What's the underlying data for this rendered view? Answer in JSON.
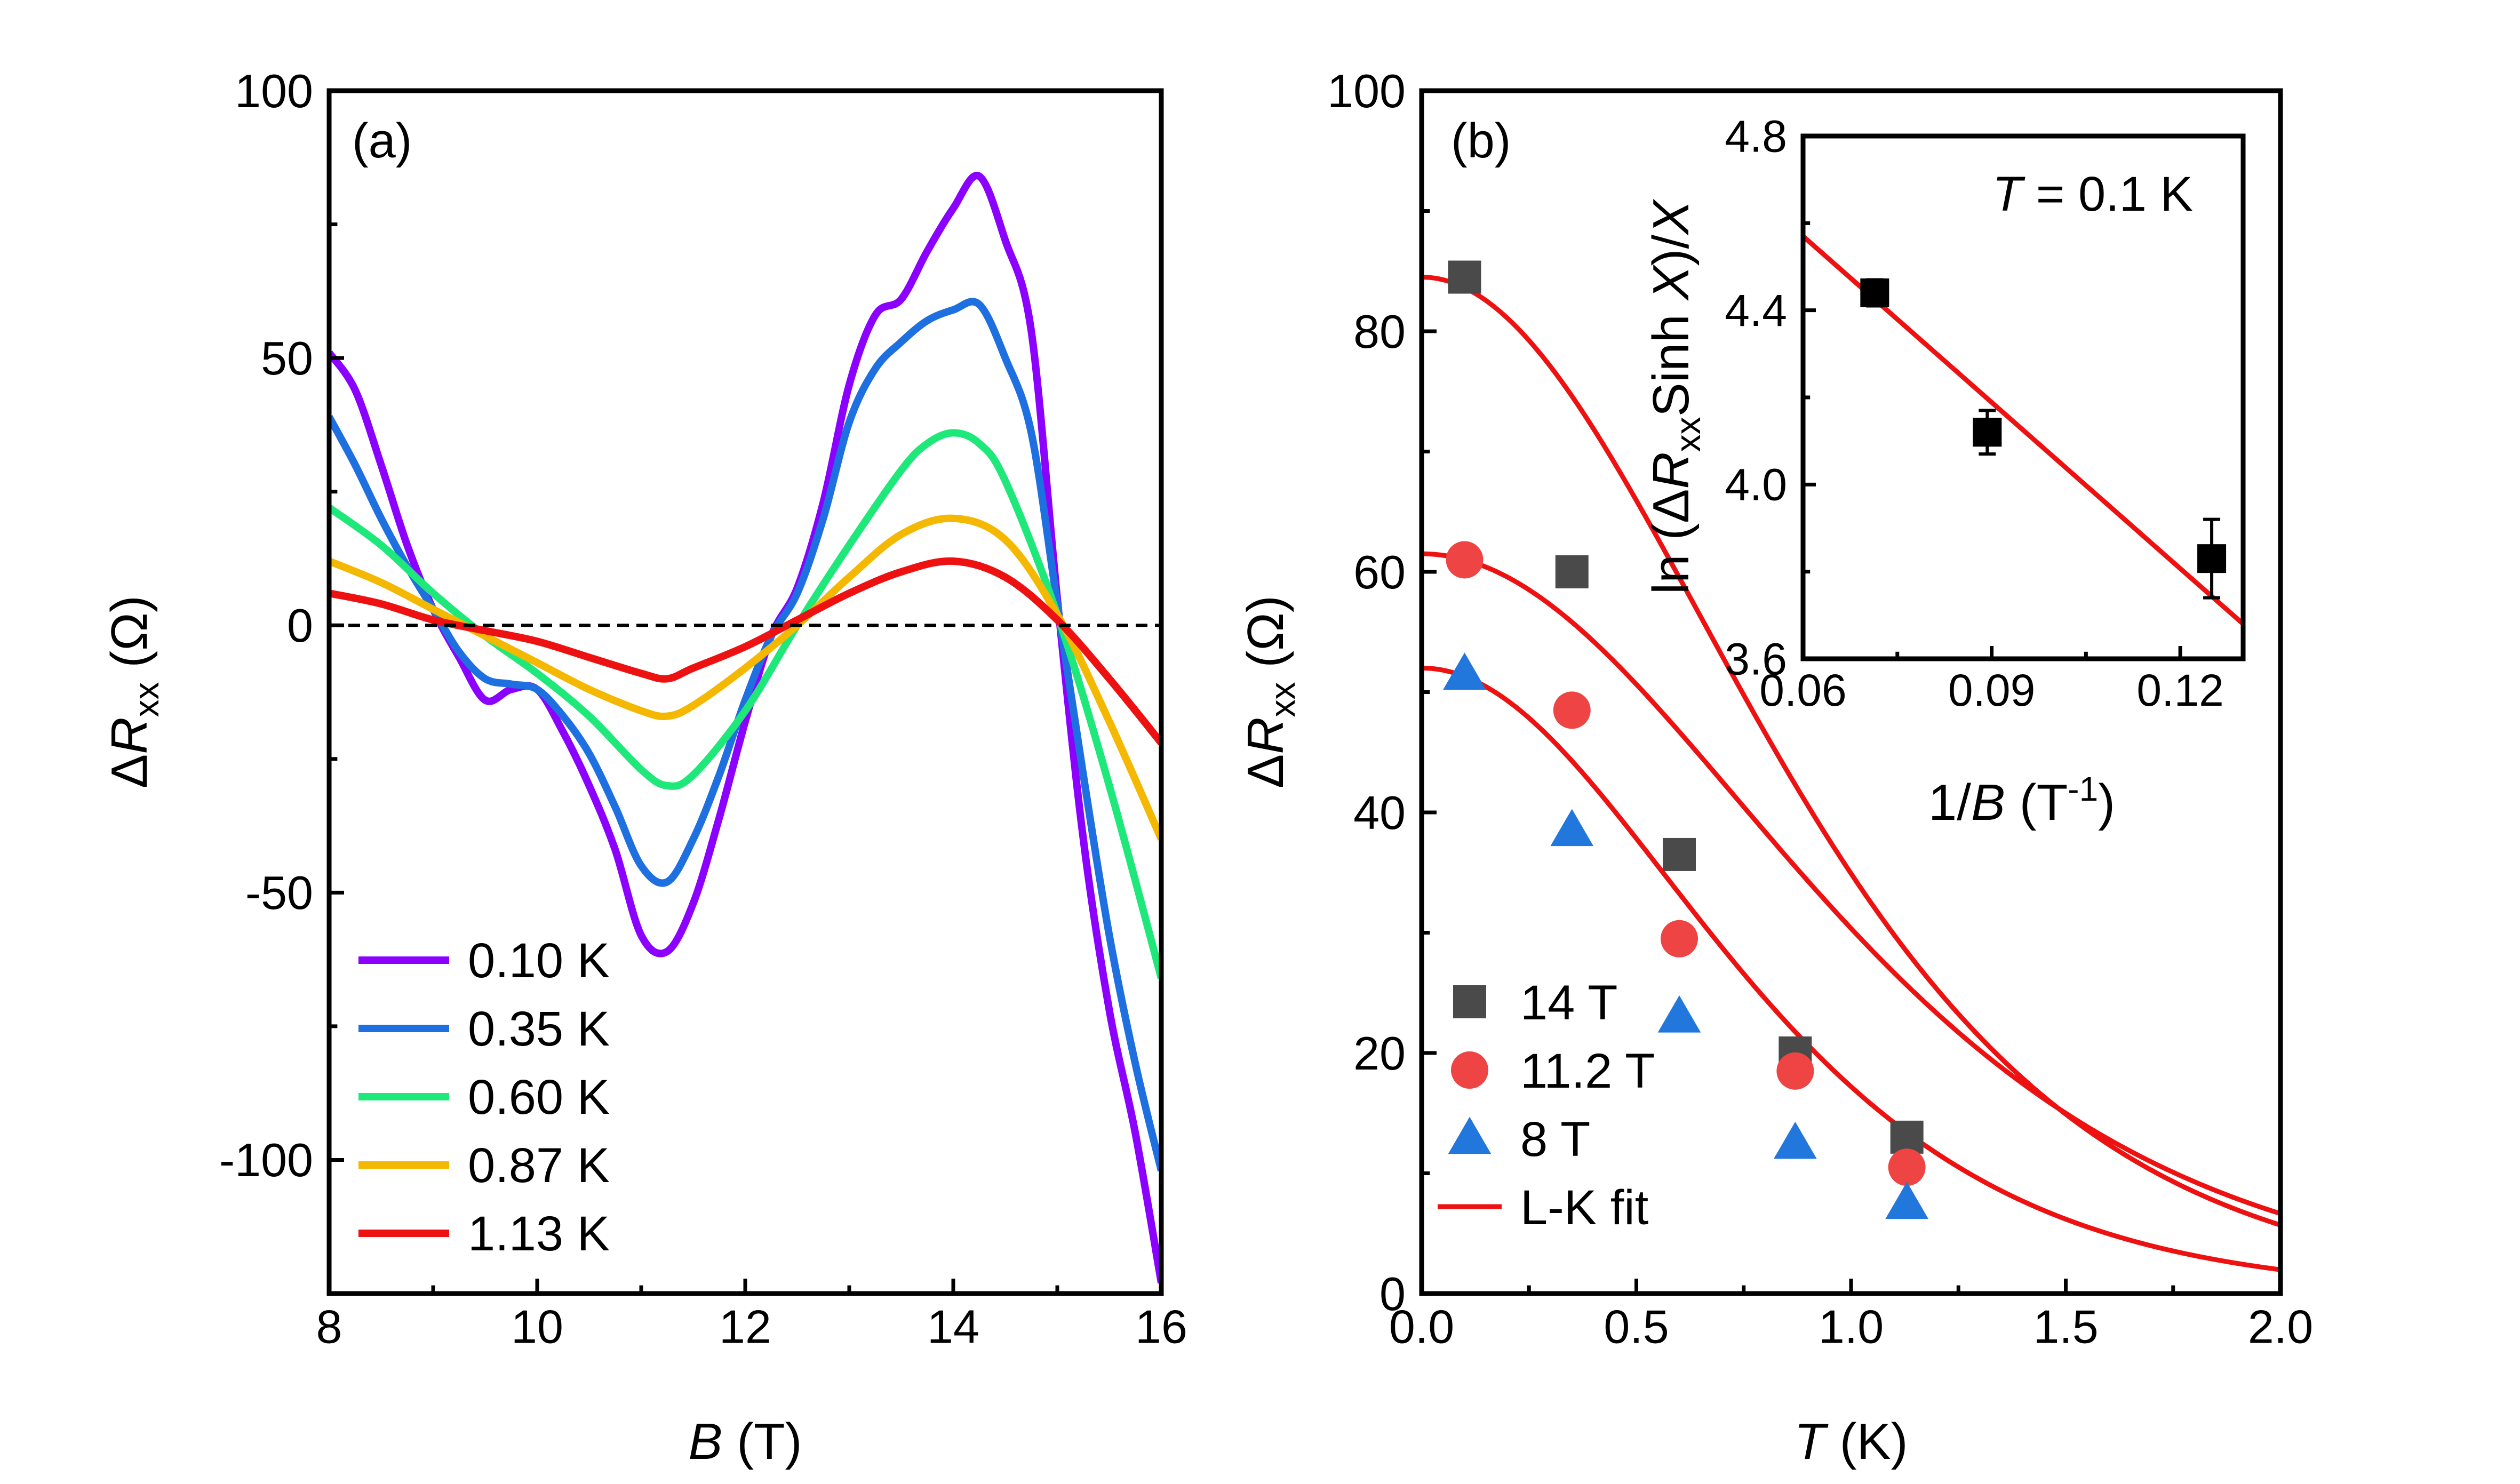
{
  "chart_data": [
    {
      "panel": "(a)",
      "type": "line",
      "xlabel_italic": "B",
      "xlabel_rest": " (T)",
      "ylabel_delta": "Δ",
      "ylabel_italic": "R",
      "ylabel_sub": "xx",
      "ylabel_rest": " (Ω)",
      "xlim": [
        8,
        16
      ],
      "ylim": [
        -125,
        100
      ],
      "xticks": [
        8,
        10,
        12,
        14,
        16
      ],
      "yticks": [
        -100,
        -50,
        0,
        50,
        100
      ],
      "ytick_labels": [
        "-100",
        "-50",
        "0",
        "50",
        "100"
      ],
      "zero_line": true,
      "legend_position": "bottom-left",
      "series": [
        {
          "name": "0.10 K",
          "color": "#8B00FF",
          "x": [
            8.0,
            8.25,
            8.5,
            8.75,
            9.0,
            9.25,
            9.5,
            9.75,
            10.0,
            10.25,
            10.5,
            10.75,
            11.0,
            11.25,
            11.5,
            11.75,
            12.0,
            12.25,
            12.5,
            12.75,
            13.0,
            13.25,
            13.5,
            13.75,
            14.0,
            14.25,
            14.5,
            14.75,
            15.0,
            15.25,
            15.5,
            15.75,
            16.0
          ],
          "values": [
            51,
            44,
            30,
            15,
            3,
            -6,
            -14,
            -12,
            -12,
            -20,
            -30,
            -42,
            -58,
            -61,
            -52,
            -36,
            -18,
            -2,
            7,
            23,
            45,
            58,
            61,
            70,
            78,
            84,
            72,
            55,
            5,
            -40,
            -72,
            -95,
            -123
          ]
        },
        {
          "name": "0.35 K",
          "color": "#1E6FE0",
          "x": [
            8.0,
            8.25,
            8.5,
            8.75,
            9.0,
            9.25,
            9.5,
            9.75,
            10.0,
            10.25,
            10.5,
            10.75,
            11.0,
            11.25,
            11.5,
            11.75,
            12.0,
            12.25,
            12.5,
            12.75,
            13.0,
            13.25,
            13.5,
            13.75,
            14.0,
            14.25,
            14.5,
            14.75,
            15.0,
            15.25,
            15.5,
            15.75,
            16.0
          ],
          "values": [
            39,
            30,
            20,
            11,
            3,
            -5,
            -10,
            -11,
            -12,
            -17,
            -24,
            -34,
            -45,
            -48,
            -40,
            -28,
            -14,
            -2,
            6,
            20,
            38,
            48,
            53,
            57,
            59,
            60,
            50,
            36,
            4,
            -28,
            -58,
            -82,
            -102
          ]
        },
        {
          "name": "0.60 K",
          "color": "#1EE87A",
          "x": [
            8.0,
            8.5,
            9.0,
            9.5,
            10.0,
            10.5,
            11.0,
            11.25,
            11.5,
            12.0,
            12.5,
            13.0,
            13.5,
            13.75,
            14.0,
            14.25,
            14.5,
            15.0,
            15.5,
            16.0
          ],
          "values": [
            22,
            15,
            6,
            -2,
            -9,
            -17,
            -27,
            -30,
            -28,
            -16,
            0,
            15,
            29,
            34,
            36,
            34,
            27,
            2,
            -30,
            -66
          ]
        },
        {
          "name": "0.87 K",
          "color": "#F5B800",
          "x": [
            8.0,
            8.5,
            9.0,
            9.5,
            10.0,
            10.5,
            11.0,
            11.25,
            11.5,
            12.0,
            12.5,
            13.0,
            13.5,
            14.0,
            14.5,
            15.0,
            15.5,
            16.0
          ],
          "values": [
            12,
            8,
            3,
            -2,
            -7,
            -12,
            -16,
            -17,
            -15,
            -8,
            0,
            9,
            17,
            20,
            16,
            2,
            -18,
            -40
          ]
        },
        {
          "name": "1.13 K",
          "color": "#EE1111",
          "x": [
            8.0,
            8.5,
            9.0,
            9.5,
            10.0,
            10.5,
            11.0,
            11.25,
            11.5,
            12.0,
            12.5,
            13.0,
            13.5,
            14.0,
            14.5,
            15.0,
            15.5,
            16.0
          ],
          "values": [
            6,
            4,
            1,
            -1,
            -3,
            -6,
            -9,
            -10,
            -8,
            -4,
            1,
            6,
            10,
            12,
            9,
            1,
            -10,
            -22
          ]
        }
      ]
    },
    {
      "panel": "(b)",
      "type": "scatter",
      "xlabel_italic": "T",
      "xlabel_rest": " (K)",
      "ylabel_delta": "Δ",
      "ylabel_italic": "R",
      "ylabel_sub": "xx",
      "ylabel_rest": " (Ω)",
      "xlim": [
        0,
        2
      ],
      "ylim": [
        0,
        100
      ],
      "xticks": [
        0.0,
        0.5,
        1.0,
        1.5,
        2.0
      ],
      "xtick_labels": [
        "0.0",
        "0.5",
        "1.0",
        "1.5",
        "2.0"
      ],
      "yticks": [
        0,
        20,
        40,
        60,
        80,
        100
      ],
      "ytick_labels": [
        "0",
        "20",
        "40",
        "60",
        "80",
        "100"
      ],
      "legend_position": "bottom-left",
      "series": [
        {
          "name": "14 T",
          "marker": "square",
          "color": "#4A4A4A",
          "x": [
            0.1,
            0.35,
            0.6,
            0.87,
            1.13
          ],
          "values": [
            84.5,
            60,
            36.5,
            20,
            13
          ]
        },
        {
          "name": "11.2 T",
          "marker": "circle",
          "color": "#EE4444",
          "x": [
            0.1,
            0.35,
            0.6,
            0.87,
            1.13
          ],
          "values": [
            61,
            48.5,
            29.5,
            18.5,
            10.5
          ]
        },
        {
          "name": "8 T",
          "marker": "triangle",
          "color": "#2277DD",
          "x": [
            0.1,
            0.35,
            0.6,
            0.87,
            1.13
          ],
          "values": [
            51.5,
            38.5,
            23,
            12.5,
            7.5
          ]
        }
      ],
      "fit": {
        "name": "L-K fit",
        "color": "#EE1111",
        "curves": [
          {
            "for": "14 T",
            "A": 84.5,
            "k": 2.5
          },
          {
            "for": "11.2 T",
            "A": 61.5,
            "k": 2.2
          },
          {
            "for": "8 T",
            "A": 52,
            "k": 2.85
          }
        ]
      }
    },
    {
      "panel": "(b) inset",
      "type": "scatter",
      "annotation_italic": "T",
      "annotation_rest": " = 0.1 K",
      "xlabel_pre": "1/",
      "xlabel_italic": "B",
      "xlabel_rest": " (T",
      "xlabel_sup": "-1",
      "xlabel_close": ")",
      "ylabel_pre": "ln (Δ",
      "ylabel_italic": "R",
      "ylabel_sub": "xx",
      "ylabel_mid": "Sinh ",
      "ylabel_italic2": "X",
      "ylabel_post": ")/",
      "ylabel_italic3": "X",
      "xlim": [
        0.06,
        0.13
      ],
      "ylim": [
        3.6,
        4.8
      ],
      "xticks": [
        0.06,
        0.09,
        0.12
      ],
      "xtick_labels": [
        "0.06",
        "0.09",
        "0.12"
      ],
      "yticks": [
        3.6,
        4.0,
        4.4,
        4.8
      ],
      "ytick_labels": [
        "3.6",
        "4.0",
        "4.4",
        "4.8"
      ],
      "points": {
        "x": [
          0.0714,
          0.0893,
          0.125
        ],
        "values": [
          4.44,
          4.12,
          3.83
        ],
        "err": [
          0.03,
          0.05,
          0.09
        ],
        "color": "#000000"
      },
      "fit_line": {
        "x": [
          0.06,
          0.13
        ],
        "values": [
          4.57,
          3.68
        ],
        "color": "#EE1111"
      }
    }
  ]
}
